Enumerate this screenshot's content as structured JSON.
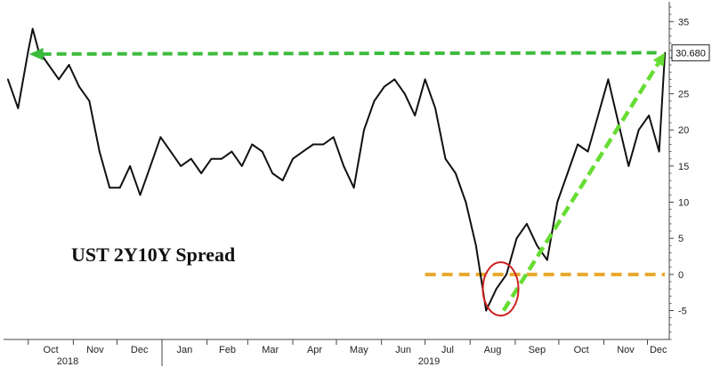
{
  "chart_data": {
    "type": "line",
    "title": "UST 2Y10Y Spread",
    "ylim": [
      -9,
      37
    ],
    "y_ticks": [
      -5,
      0,
      5,
      10,
      15,
      20,
      25,
      30,
      35
    ],
    "x_ticks": [
      "Oct",
      "Nov",
      "Dec",
      "Jan",
      "Feb",
      "Mar",
      "Apr",
      "May",
      "Jun",
      "Jul",
      "Aug",
      "Sep",
      "Oct",
      "Nov",
      "Dec"
    ],
    "year_labels": [
      "2018",
      "2019"
    ],
    "last_value_label": "30.680",
    "grid": false,
    "series": [
      {
        "x": [
          "2018-09-17",
          "2018-09-24",
          "2018-10-01",
          "2018-10-04",
          "2018-10-08",
          "2018-10-15",
          "2018-10-22",
          "2018-10-29",
          "2018-11-05",
          "2018-11-12",
          "2018-11-19",
          "2018-11-26",
          "2018-12-03",
          "2018-12-10",
          "2018-12-17",
          "2018-12-24",
          "2018-12-31",
          "2019-01-07",
          "2019-01-14",
          "2019-01-21",
          "2019-01-28",
          "2019-02-04",
          "2019-02-11",
          "2019-02-18",
          "2019-02-25",
          "2019-03-04",
          "2019-03-11",
          "2019-03-18",
          "2019-03-25",
          "2019-04-01",
          "2019-04-08",
          "2019-04-15",
          "2019-04-22",
          "2019-04-29",
          "2019-05-06",
          "2019-05-13",
          "2019-05-20",
          "2019-05-27",
          "2019-06-03",
          "2019-06-10",
          "2019-06-17",
          "2019-06-24",
          "2019-07-01",
          "2019-07-08",
          "2019-07-15",
          "2019-07-22",
          "2019-07-29",
          "2019-08-05",
          "2019-08-12",
          "2019-08-19",
          "2019-08-26",
          "2019-09-02",
          "2019-09-09",
          "2019-09-16",
          "2019-09-23",
          "2019-09-30",
          "2019-10-07",
          "2019-10-14",
          "2019-10-21",
          "2019-10-28",
          "2019-11-04",
          "2019-11-11",
          "2019-11-18",
          "2019-11-25",
          "2019-12-02",
          "2019-12-09",
          "2019-12-13"
        ],
        "values": [
          27,
          23,
          31,
          34,
          31,
          29,
          27,
          29,
          26,
          24,
          17,
          12,
          12,
          15,
          11,
          15,
          19,
          17,
          15,
          16,
          14,
          16,
          16,
          17,
          15,
          18,
          17,
          14,
          13,
          16,
          17,
          18,
          18,
          19,
          15,
          12,
          20,
          24,
          26,
          27,
          25,
          22,
          27,
          23,
          16,
          14,
          10,
          4,
          -5,
          -2,
          0,
          5,
          7,
          4,
          2,
          10,
          14,
          18,
          17,
          22,
          27,
          21,
          15,
          20,
          22,
          17,
          30.68
        ]
      }
    ],
    "annotations": {
      "green_dashed_horizontal": {
        "from": [
          "2018-10-04",
          30.5
        ],
        "to": [
          "2019-12-13",
          30.68
        ],
        "color": "#3dbb3d"
      },
      "green_dashed_diagonal": {
        "from": [
          "2019-08-24",
          -5
        ],
        "to": [
          "2019-12-13",
          30.68
        ],
        "color": "#66dd33"
      },
      "orange_dashed_zero": {
        "from": [
          "2019-07-01",
          0
        ],
        "to": [
          "2019-12-13",
          0
        ],
        "color": "#e8a82c"
      },
      "red_circle": {
        "center": [
          "2019-08-22",
          -2
        ],
        "color": "#cc2222"
      }
    },
    "colors": {
      "line": "#111111",
      "axis": "#444444",
      "badge_bg": "#ffffff"
    }
  }
}
